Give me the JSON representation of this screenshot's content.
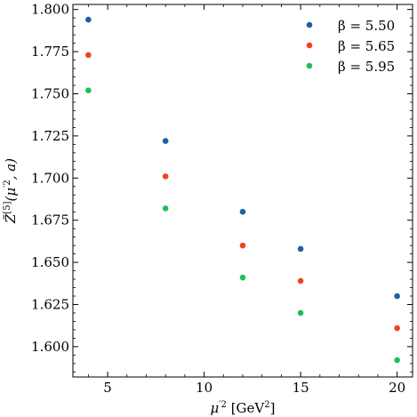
{
  "chart_data": {
    "type": "scatter",
    "xlabel_parts": [
      "μ",
      "′2",
      " [GeV",
      "2",
      "]"
    ],
    "ylabel_parts": [
      "Z̃",
      "[5]",
      "(μ",
      "′2",
      ", a)"
    ],
    "xlim": [
      3.2,
      20.8
    ],
    "ylim": [
      1.582,
      1.803
    ],
    "xticks": [
      5,
      10,
      15,
      20
    ],
    "xtick_labels": [
      "5",
      "10",
      "15",
      "20"
    ],
    "yticks": [
      1.6,
      1.625,
      1.65,
      1.675,
      1.7,
      1.725,
      1.75,
      1.775,
      1.8
    ],
    "ytick_labels": [
      "1.600",
      "1.625",
      "1.650",
      "1.675",
      "1.700",
      "1.725",
      "1.750",
      "1.775",
      "1.800"
    ],
    "grid": false,
    "legend_position": "top-right",
    "series": [
      {
        "name": "β = 5.50",
        "color": "#1f5fa6",
        "x": [
          4,
          8,
          12,
          15,
          20
        ],
        "y": [
          1.794,
          1.722,
          1.68,
          1.658,
          1.63
        ]
      },
      {
        "name": "β = 5.65",
        "color": "#f2431c",
        "x": [
          4,
          8,
          12,
          15,
          20
        ],
        "y": [
          1.773,
          1.701,
          1.66,
          1.639,
          1.611
        ]
      },
      {
        "name": "β = 5.95",
        "color": "#1fbf57",
        "x": [
          4,
          8,
          12,
          15,
          20
        ],
        "y": [
          1.752,
          1.682,
          1.641,
          1.62,
          1.592
        ]
      }
    ]
  }
}
